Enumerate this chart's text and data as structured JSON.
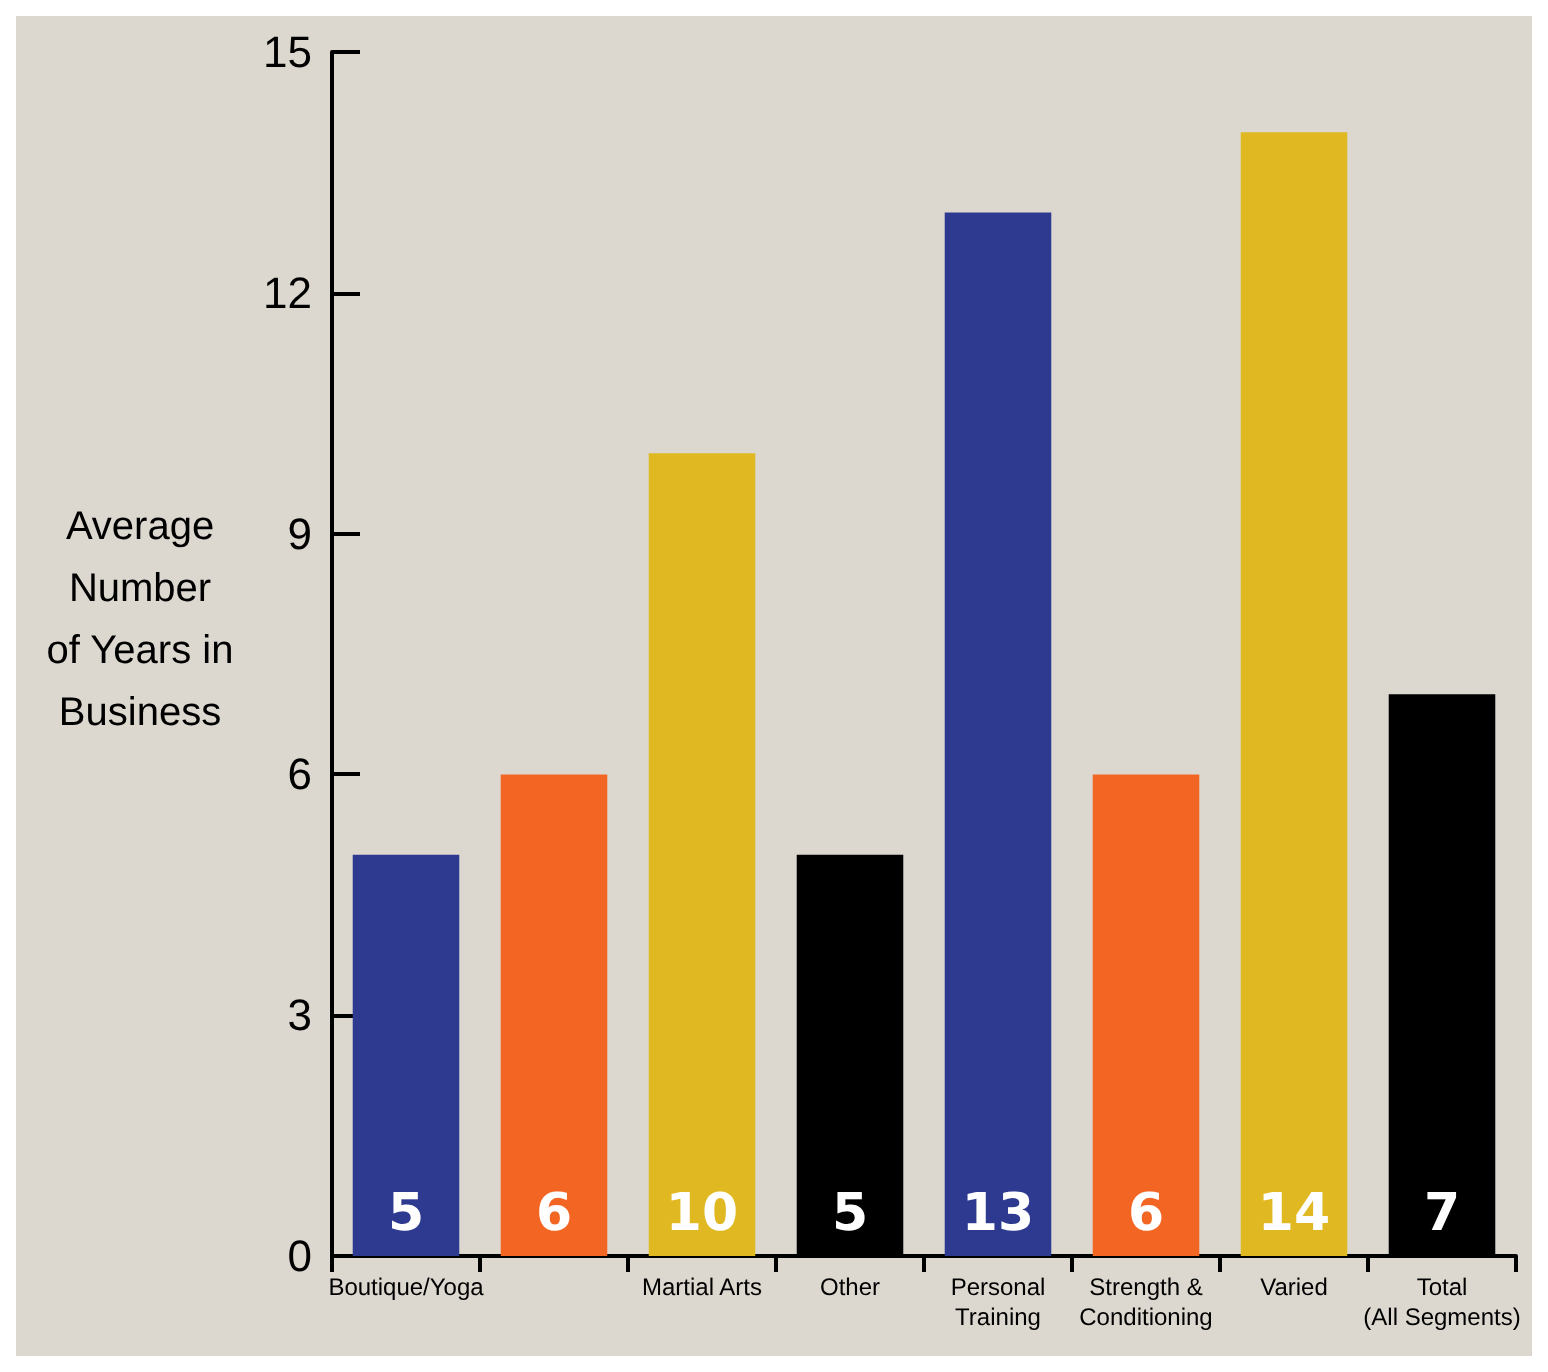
{
  "chart_data": {
    "type": "bar",
    "ylabel": "Average\nNumber\nof Years in\nBusiness",
    "categories": [
      "Boutique/Yoga",
      null,
      "Martial Arts",
      "Other",
      "Personal\nTraining",
      "Strength &\nConditioning",
      "Varied",
      "Total\n(All Segments)"
    ],
    "values": [
      5,
      6,
      10,
      5,
      13,
      6,
      14,
      7
    ],
    "colors": [
      "#2e3a8f",
      "#f26522",
      "#e0b822",
      "#000000",
      "#2e3a8f",
      "#f26522",
      "#e0b822",
      "#000000"
    ],
    "ylim": [
      0,
      15
    ],
    "yticks": [
      0,
      3,
      6,
      9,
      12,
      15
    ],
    "grid": false,
    "data_labels": true
  }
}
